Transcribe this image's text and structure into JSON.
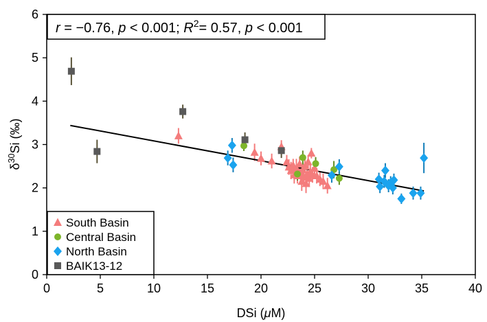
{
  "chart_data": {
    "type": "scatter",
    "stats_box": {
      "segments": [
        {
          "t": "r",
          "i": true
        },
        {
          "t": " = −0.76, "
        },
        {
          "t": "p",
          "i": true
        },
        {
          "t": " < 0.001; "
        },
        {
          "t": "R",
          "i": true
        },
        {
          "t": "2",
          "sup": true
        },
        {
          "t": "= 0.57, "
        },
        {
          "t": "p",
          "i": true
        },
        {
          "t": " < 0.001"
        }
      ]
    },
    "xlabel": {
      "segments": [
        {
          "t": "DSi ("
        },
        {
          "t": "μ",
          "i": true
        },
        {
          "t": "M)"
        }
      ]
    },
    "ylabel": {
      "segments": [
        {
          "t": "δ"
        },
        {
          "t": "30",
          "sup": true
        },
        {
          "t": "Si (‰)"
        }
      ]
    },
    "xlim": [
      0,
      40
    ],
    "ylim": [
      0,
      6
    ],
    "xticks": [
      0,
      5,
      10,
      15,
      20,
      25,
      30,
      35,
      40
    ],
    "yticks": [
      0,
      1,
      2,
      3,
      4,
      5,
      6
    ],
    "legend_position": "bottom-left",
    "regression_line": {
      "x": [
        2.2,
        35.2
      ],
      "y": [
        3.44,
        1.93
      ],
      "color": "#000000"
    },
    "series": [
      {
        "name": "South Basin",
        "marker": "triangle",
        "color": "#F47C7C",
        "points": [
          {
            "x": 12.3,
            "y": 3.2,
            "err": 0.18
          },
          {
            "x": 19.4,
            "y": 2.82,
            "err": 0.2
          },
          {
            "x": 20.0,
            "y": 2.68,
            "err": 0.16
          },
          {
            "x": 21.0,
            "y": 2.62,
            "err": 0.17
          },
          {
            "x": 21.9,
            "y": 2.95,
            "err": 0.15
          },
          {
            "x": 22.4,
            "y": 2.6,
            "err": 0.16
          },
          {
            "x": 22.6,
            "y": 2.48,
            "err": 0.18
          },
          {
            "x": 22.8,
            "y": 2.4,
            "err": 0.2
          },
          {
            "x": 23.0,
            "y": 2.52,
            "err": 0.15
          },
          {
            "x": 23.1,
            "y": 2.3,
            "err": 0.2
          },
          {
            "x": 23.3,
            "y": 2.45,
            "err": 0.22
          },
          {
            "x": 23.4,
            "y": 2.28,
            "err": 0.18
          },
          {
            "x": 23.6,
            "y": 2.55,
            "err": 0.17
          },
          {
            "x": 23.7,
            "y": 2.35,
            "err": 0.2
          },
          {
            "x": 23.8,
            "y": 2.15,
            "err": 0.22
          },
          {
            "x": 23.9,
            "y": 2.42,
            "err": 0.18
          },
          {
            "x": 24.0,
            "y": 2.25,
            "err": 0.2
          },
          {
            "x": 24.1,
            "y": 2.5,
            "err": 0.16
          },
          {
            "x": 24.2,
            "y": 2.1,
            "err": 0.22
          },
          {
            "x": 24.3,
            "y": 2.32,
            "err": 0.2
          },
          {
            "x": 24.4,
            "y": 2.6,
            "err": 0.16
          },
          {
            "x": 24.5,
            "y": 2.22,
            "err": 0.2
          },
          {
            "x": 24.6,
            "y": 2.38,
            "err": 0.18
          },
          {
            "x": 24.7,
            "y": 2.8,
            "err": 0.12
          },
          {
            "x": 24.8,
            "y": 2.3,
            "err": 0.18
          },
          {
            "x": 25.0,
            "y": 2.45,
            "err": 0.15
          },
          {
            "x": 25.2,
            "y": 2.28,
            "err": 0.18
          },
          {
            "x": 25.5,
            "y": 2.2,
            "err": 0.16
          },
          {
            "x": 25.8,
            "y": 2.15,
            "err": 0.18
          },
          {
            "x": 26.2,
            "y": 2.05,
            "err": 0.18
          }
        ]
      },
      {
        "name": "Central Basin",
        "marker": "circle",
        "color": "#7DB52A",
        "points": [
          {
            "x": 18.4,
            "y": 2.97,
            "err": 0.12
          },
          {
            "x": 23.4,
            "y": 2.32,
            "err": 0.15
          },
          {
            "x": 23.9,
            "y": 2.7,
            "err": 0.16
          },
          {
            "x": 25.1,
            "y": 2.56,
            "err": 0.15
          },
          {
            "x": 26.8,
            "y": 2.42,
            "err": 0.2
          },
          {
            "x": 27.3,
            "y": 2.22,
            "err": 0.15
          }
        ]
      },
      {
        "name": "North Basin",
        "marker": "diamond",
        "color": "#1AA3EE",
        "points": [
          {
            "x": 16.9,
            "y": 2.69,
            "err": 0.17
          },
          {
            "x": 17.3,
            "y": 2.98,
            "err": 0.17
          },
          {
            "x": 17.4,
            "y": 2.53,
            "err": 0.17
          },
          {
            "x": 26.6,
            "y": 2.29,
            "err": 0.17
          },
          {
            "x": 27.3,
            "y": 2.49,
            "err": 0.17
          },
          {
            "x": 31.0,
            "y": 2.2,
            "err": 0.15
          },
          {
            "x": 31.1,
            "y": 2.03,
            "err": 0.15
          },
          {
            "x": 31.5,
            "y": 2.15,
            "err": 0.15
          },
          {
            "x": 31.6,
            "y": 2.4,
            "err": 0.17
          },
          {
            "x": 31.9,
            "y": 2.05,
            "err": 0.15
          },
          {
            "x": 32.1,
            "y": 2.12,
            "err": 0.15
          },
          {
            "x": 32.3,
            "y": 2.0,
            "err": 0.15
          },
          {
            "x": 32.4,
            "y": 2.18,
            "err": 0.15
          },
          {
            "x": 33.1,
            "y": 1.75,
            "err": 0.12
          },
          {
            "x": 34.2,
            "y": 1.88,
            "err": 0.15
          },
          {
            "x": 34.9,
            "y": 1.88,
            "err": 0.15
          },
          {
            "x": 35.2,
            "y": 2.69,
            "err": 0.35
          }
        ]
      },
      {
        "name": "BAIK13-12",
        "marker": "square",
        "color": "#595959",
        "points": [
          {
            "x": 2.3,
            "y": 4.69,
            "err": 0.32
          },
          {
            "x": 4.7,
            "y": 2.84,
            "err": 0.27
          },
          {
            "x": 12.7,
            "y": 3.76,
            "err": 0.16
          },
          {
            "x": 18.5,
            "y": 3.11,
            "err": 0.17
          },
          {
            "x": 21.9,
            "y": 2.86,
            "err": 0.17
          }
        ]
      }
    ]
  }
}
